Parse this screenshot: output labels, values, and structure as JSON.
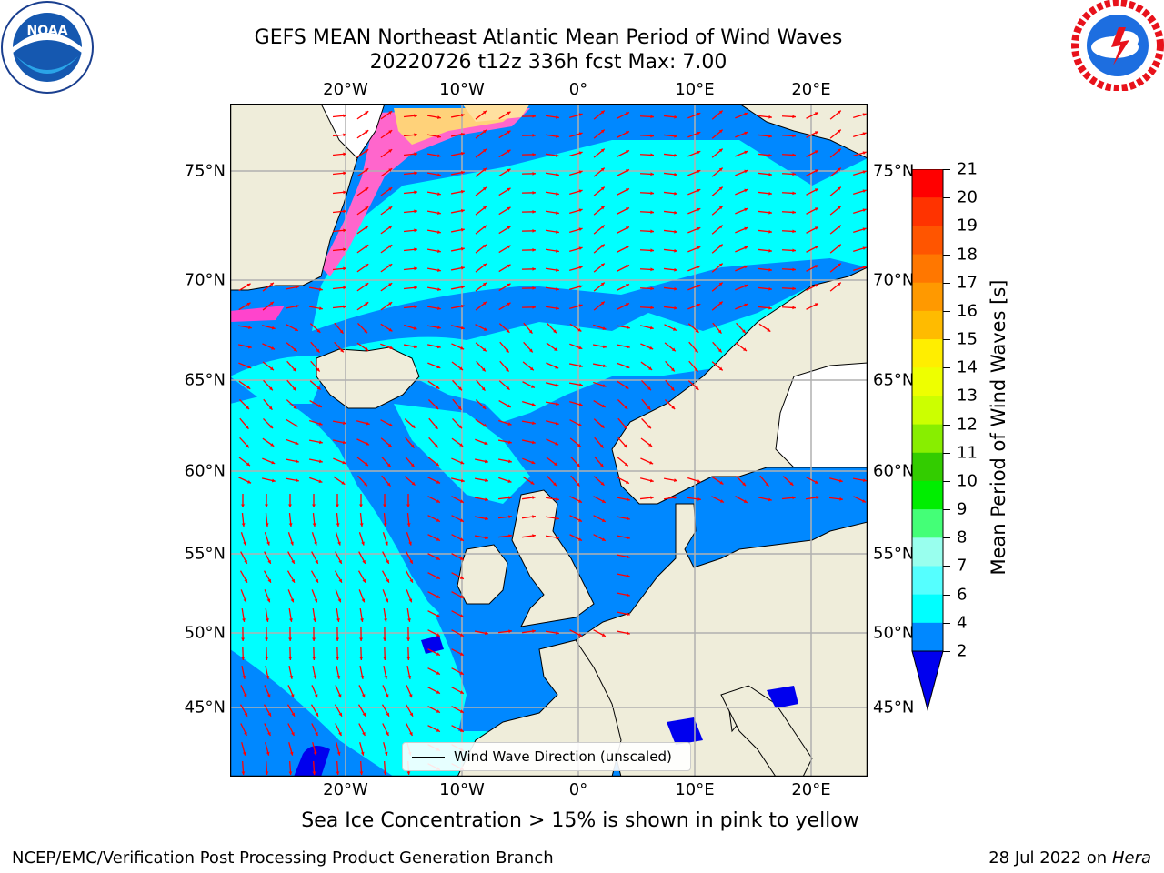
{
  "title": {
    "line1": "GEFS MEAN Northeast Atlantic Mean Period of Wind Waves",
    "line2": "20220726 t12z 336h fcst   Max: 7.00"
  },
  "logos": {
    "noaa_text": "NOAA",
    "noaa_ring": "NATIONAL OCEANIC AND ATMOSPHERIC ADMINISTRATION · U.S. DEPARTMENT OF COMMERCE",
    "nws_ring": "NATIONAL WEATHER SERVICE"
  },
  "axes": {
    "lon_ticks": [
      "20°W",
      "10°W",
      "0°",
      "10°E",
      "20°E"
    ],
    "lat_ticks": [
      "75°N",
      "70°N",
      "65°N",
      "60°N",
      "55°N",
      "50°N",
      "45°N"
    ]
  },
  "legend": {
    "label": "Wind Wave Direction (unscaled)"
  },
  "colorbar": {
    "title": "Mean Period of Wind Waves [s]",
    "ticks": [
      "21",
      "20",
      "19",
      "18",
      "17",
      "16",
      "15",
      "14",
      "13",
      "12",
      "11",
      "10",
      "9",
      "8",
      "7",
      "6",
      "4",
      "2"
    ],
    "colors": [
      "#ff0000",
      "#ff3300",
      "#ff5500",
      "#ff7700",
      "#ff9900",
      "#ffbb00",
      "#ffee00",
      "#eeff00",
      "#ccff00",
      "#88ee00",
      "#33cc00",
      "#00ee00",
      "#44ff77",
      "#99ffee",
      "#55ffff",
      "#00ffff",
      "#0088ff"
    ],
    "under_color": "#0000ee"
  },
  "map_colors": {
    "land": "#efedda",
    "ice": "#ffffff",
    "ocean_low": "#0088ff",
    "ocean_mid": "#00ffff",
    "ocean_deep": "#0000ee",
    "arrow": "#ff0000",
    "grid": "#b0b0b0"
  },
  "notes": {
    "sea_ice": "Sea Ice Concentration > 15% is shown in pink to yellow"
  },
  "footer": {
    "left": "NCEP/EMC/Verification Post Processing Product Generation Branch",
    "date": "28 Jul 2022 on ",
    "machine": "Hera"
  }
}
